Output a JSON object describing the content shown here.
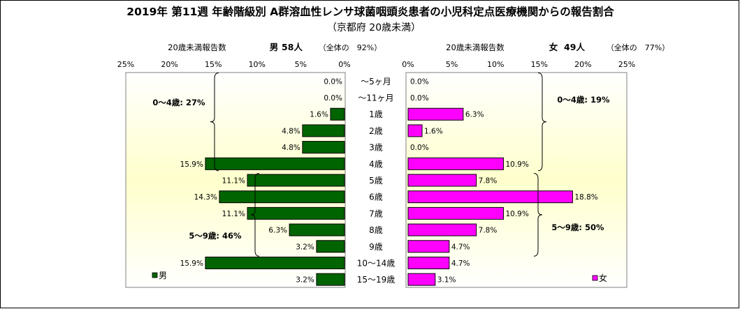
{
  "chart_data": {
    "type": "bar",
    "title": "2019年 第11週 年齢階級別 A群溶血性レンサ球菌咽頭炎患者の小児科定点医療機関からの報告割合",
    "subtitle": "（京都府 20歳未満）",
    "categories": [
      "～5ヶ月",
      "～11ヶ月",
      "1歳",
      "2歳",
      "3歳",
      "4歳",
      "5歳",
      "6歳",
      "7歳",
      "8歳",
      "9歳",
      "10～14歳",
      "15～19歳"
    ],
    "xlim": [
      0,
      25
    ],
    "tick_labels": [
      "25%",
      "20%",
      "15%",
      "10%",
      "5%",
      "0%"
    ],
    "tick_labels_right": [
      "0%",
      "5%",
      "10%",
      "15%",
      "20%",
      "25%"
    ],
    "series": [
      {
        "name": "男",
        "side": "left",
        "color": "#006400",
        "values": [
          0.0,
          0.0,
          1.6,
          4.8,
          4.8,
          15.9,
          11.1,
          14.3,
          11.1,
          6.3,
          3.2,
          15.9,
          3.2
        ],
        "labels": [
          "0.0%",
          "0.0%",
          "1.6%",
          "4.8%",
          "4.8%",
          "15.9%",
          "11.1%",
          "14.3%",
          "11.1%",
          "6.3%",
          "3.2%",
          "15.9%",
          "3.2%"
        ],
        "header_count": "20歳未満報告数",
        "header_sex": "男",
        "header_n": "58人",
        "header_ratio": "（全体の　92%）",
        "group_a": "0～4歳: 27%",
        "group_b": "5～9歳: 46%",
        "legend": "男"
      },
      {
        "name": "女",
        "side": "right",
        "color": "#ff00ff",
        "values": [
          0.0,
          0.0,
          6.3,
          1.6,
          0.0,
          10.9,
          7.8,
          18.8,
          10.9,
          7.8,
          4.7,
          4.7,
          3.1
        ],
        "labels": [
          "0.0%",
          "0.0%",
          "6.3%",
          "1.6%",
          "0.0%",
          "10.9%",
          "7.8%",
          "18.8%",
          "10.9%",
          "7.8%",
          "4.7%",
          "4.7%",
          "3.1%"
        ],
        "header_count": "20歳未満報告数",
        "header_sex": "女",
        "header_n": "49人",
        "header_ratio": "（全体の　77%）",
        "group_a": "0～4歳: 19%",
        "group_b": "5～9歳: 50%",
        "legend": "女"
      }
    ],
    "colors": {
      "bg_center": "#ffffcc",
      "bg_edge": "#ffffff"
    }
  }
}
